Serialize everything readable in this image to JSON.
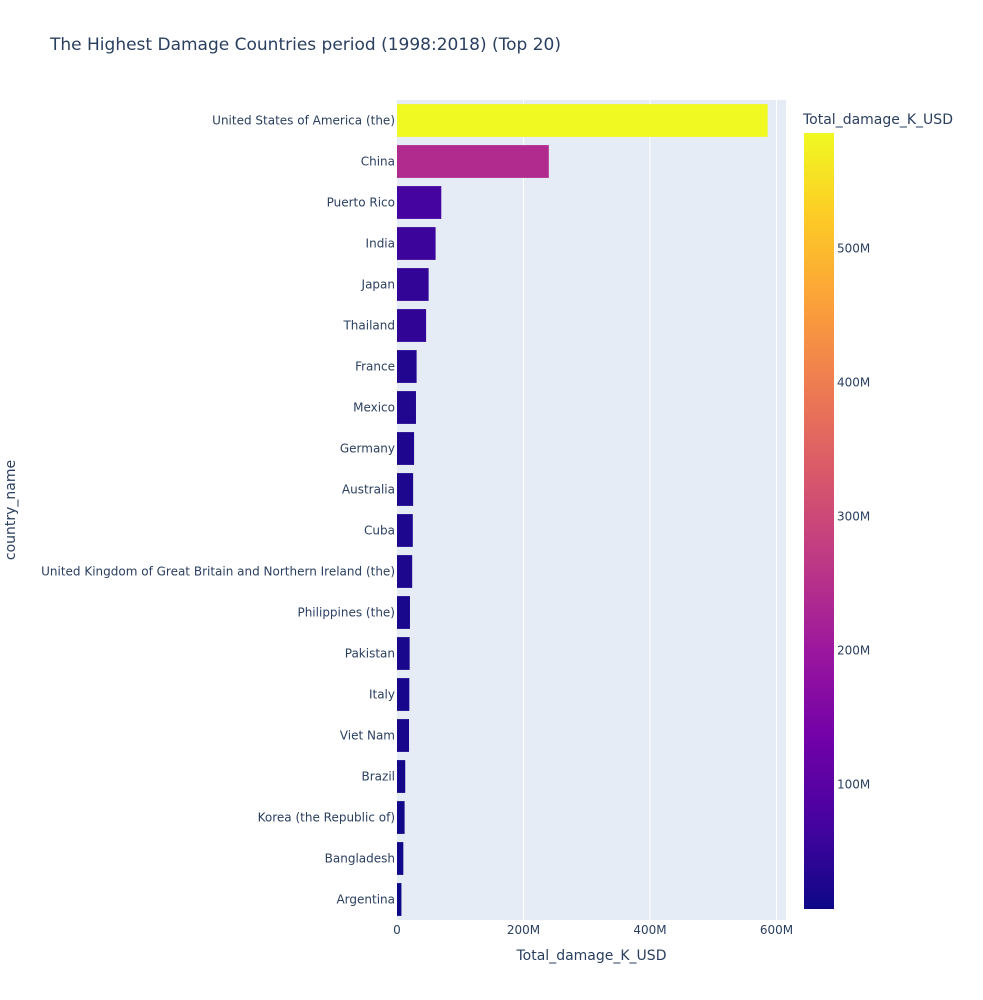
{
  "chart_data": {
    "type": "bar",
    "orientation": "horizontal",
    "title": "The Highest Damage Countries period (1998:2018) (Top 20)",
    "xlabel": "Total_damage_K_USD",
    "ylabel": "country_name",
    "xlim": [
      0,
      615000000
    ],
    "xticks": [
      0,
      200000000,
      400000000,
      600000000
    ],
    "xtick_labels": [
      "0",
      "200M",
      "400M",
      "600M"
    ],
    "grid": true,
    "categories": [
      "United States of America (the)",
      "China",
      "Puerto Rico",
      "India",
      "Japan",
      "Thailand",
      "France",
      "Mexico",
      "Germany",
      "Australia",
      "Cuba",
      "United Kingdom of Great Britain and Northern Ireland (the)",
      "Philippines (the)",
      "Pakistan",
      "Italy",
      "Viet Nam",
      "Brazil",
      "Korea (the Republic of)",
      "Bangladesh",
      "Argentina"
    ],
    "values": [
      586000000,
      240000000,
      70000000,
      61000000,
      50000000,
      46000000,
      31000000,
      30000000,
      27000000,
      25500000,
      25000000,
      24000000,
      20500000,
      20000000,
      19500000,
      19000000,
      13000000,
      12000000,
      10000000,
      7000000
    ],
    "colorbar": {
      "title": "Total_damage_K_USD",
      "range": [
        7000000,
        586000000
      ],
      "ticks": [
        100000000,
        200000000,
        300000000,
        400000000,
        500000000
      ],
      "tick_labels": [
        "100M",
        "200M",
        "300M",
        "400M",
        "500M"
      ],
      "colorscale": [
        "#0d0887",
        "#46039f",
        "#7201a8",
        "#9c179e",
        "#bd3786",
        "#d8576b",
        "#ed7953",
        "#fb9f3a",
        "#fdca26",
        "#f0f921"
      ]
    },
    "colors": {
      "plot_background": "#e5ecf6",
      "grid": "#ffffff",
      "text": "#2a3f5f"
    }
  }
}
